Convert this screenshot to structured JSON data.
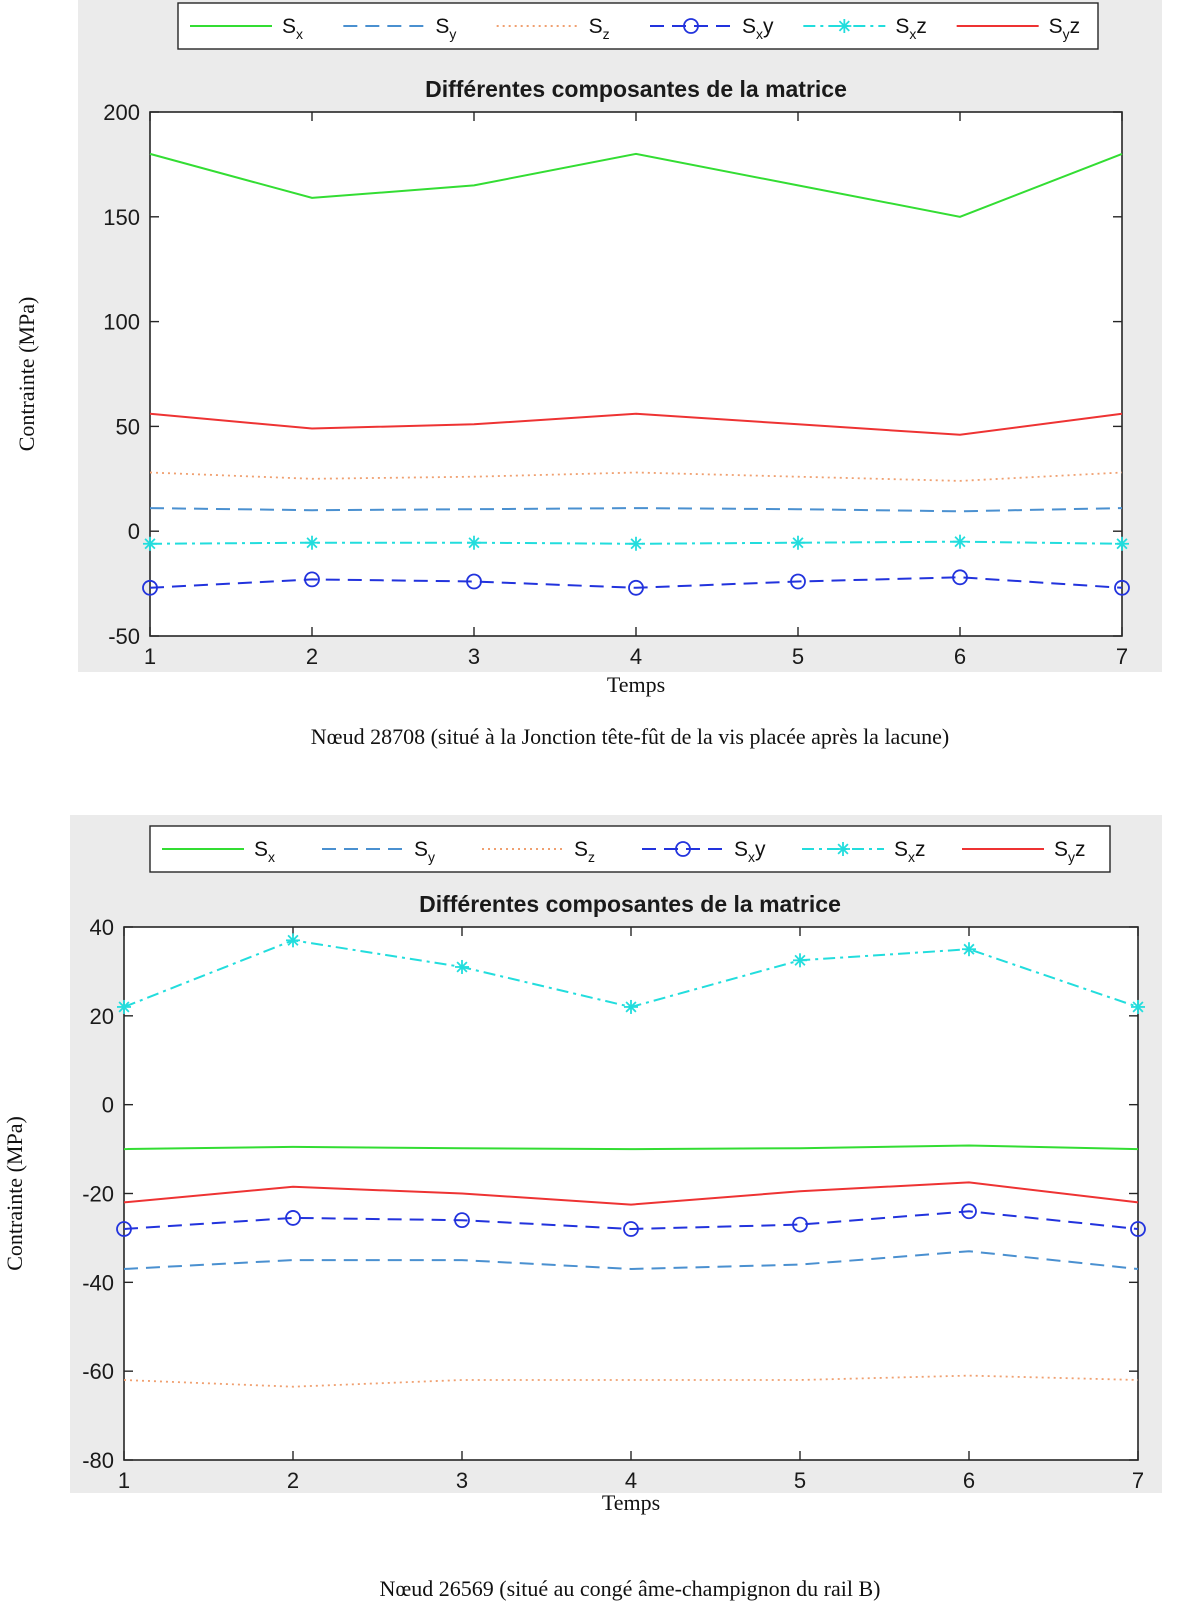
{
  "colors": {
    "panel_bg": "#ebebeb",
    "axes_bg": "#ffffff",
    "axis": "#262626",
    "sx": "#33dd33",
    "sy": "#4a90d0",
    "sz": "#f0a070",
    "sxy": "#2233dd",
    "sxz": "#22dddd",
    "syz": "#ee3333"
  },
  "legend_items": [
    {
      "main": "S",
      "sub": "x",
      "suffix": ""
    },
    {
      "main": "S",
      "sub": "y",
      "suffix": ""
    },
    {
      "main": "S",
      "sub": "z",
      "suffix": ""
    },
    {
      "main": "S",
      "sub": "x",
      "suffix": "y"
    },
    {
      "main": "S",
      "sub": "x",
      "suffix": "z"
    },
    {
      "main": "S",
      "sub": "y",
      "suffix": "z"
    }
  ],
  "chart_data": [
    {
      "type": "line",
      "title": "Différentes composantes de la matrice",
      "xlabel": "Temps",
      "ylabel": "Contrainte (MPa)",
      "caption": "Nœud 28708 (situé à la Jonction tête-fût de la vis placée après la lacune)",
      "x": [
        1,
        2,
        3,
        4,
        5,
        6,
        7
      ],
      "xlim": [
        1,
        7
      ],
      "ylim": [
        -50,
        200
      ],
      "yticks": [
        -50,
        0,
        50,
        100,
        150,
        200
      ],
      "legend_position": "top",
      "grid": false,
      "series": [
        {
          "style": "solid",
          "values": [
            180,
            159,
            165,
            180,
            165,
            150,
            180
          ]
        },
        {
          "style": "dashed",
          "values": [
            11,
            10,
            10.5,
            11,
            10.5,
            9.5,
            11
          ]
        },
        {
          "style": "dotted",
          "values": [
            28,
            25,
            26,
            28,
            26,
            24,
            28
          ]
        },
        {
          "style": "dashed-circle",
          "values": [
            -27,
            -23,
            -24,
            -27,
            -24,
            -22,
            -27
          ]
        },
        {
          "style": "dashdot-star",
          "values": [
            -6,
            -5.5,
            -5.5,
            -6,
            -5.5,
            -5,
            -6
          ]
        },
        {
          "style": "solid",
          "values": [
            56,
            49,
            51,
            56,
            51,
            46,
            56
          ]
        }
      ]
    },
    {
      "type": "line",
      "title": "Différentes composantes de la matrice",
      "xlabel": "Temps",
      "ylabel": "Contrainte (MPa)",
      "caption": "Nœud 26569 (situé au congé âme-champignon du rail B)",
      "x": [
        1,
        2,
        3,
        4,
        5,
        6,
        7
      ],
      "xlim": [
        1,
        7
      ],
      "ylim": [
        -80,
        40
      ],
      "yticks": [
        -80,
        -60,
        -40,
        -20,
        0,
        20,
        40
      ],
      "legend_position": "top",
      "grid": false,
      "series": [
        {
          "style": "solid",
          "values": [
            -10,
            -9.5,
            -9.8,
            -10,
            -9.8,
            -9.2,
            -10
          ]
        },
        {
          "style": "dashed",
          "values": [
            -37,
            -35,
            -35,
            -37,
            -36,
            -33,
            -37
          ]
        },
        {
          "style": "dotted",
          "values": [
            -62,
            -63.5,
            -62,
            -62,
            -62,
            -61,
            -62
          ]
        },
        {
          "style": "dashed-circle",
          "values": [
            -28,
            -25.5,
            -26,
            -28,
            -27,
            -24,
            -28
          ]
        },
        {
          "style": "dashdot-star",
          "values": [
            22,
            37,
            31,
            22,
            32.5,
            35,
            22
          ]
        },
        {
          "style": "solid",
          "values": [
            -22,
            -18.5,
            -20,
            -22.5,
            -19.5,
            -17.5,
            -22
          ]
        }
      ]
    }
  ]
}
